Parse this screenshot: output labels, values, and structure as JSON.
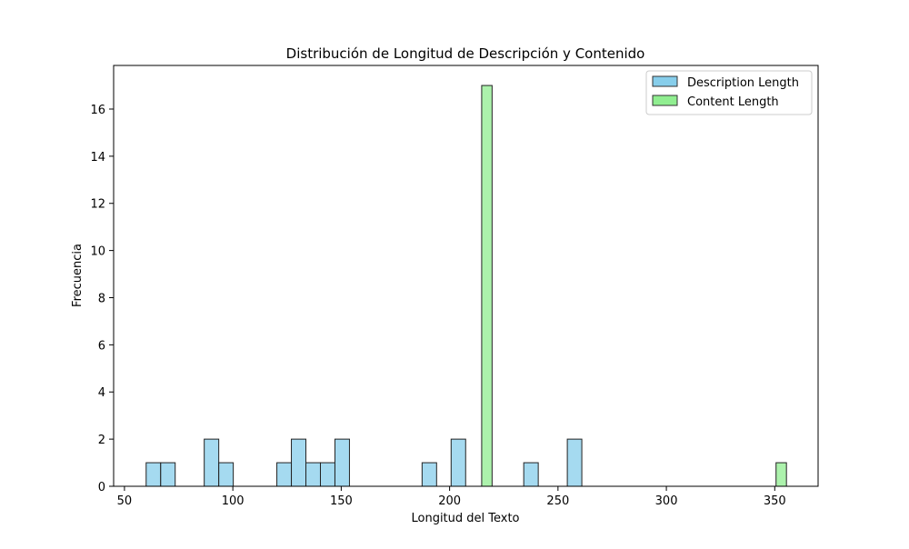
{
  "chart_data": {
    "type": "bar",
    "title": "Distribución de Longitud de Descripción y Contenido",
    "xlabel": "Longitud del Texto",
    "ylabel": "Frecuencia",
    "xlim": [
      45,
      370
    ],
    "ylim": [
      0,
      17.85
    ],
    "xticks": [
      50,
      100,
      150,
      200,
      250,
      300,
      350
    ],
    "yticks": [
      0,
      2,
      4,
      6,
      8,
      10,
      12,
      14,
      16
    ],
    "grid": false,
    "legend_position": "top-right",
    "series": [
      {
        "name": "Description Length",
        "color": "#87CEEB",
        "bins": [
          {
            "x0": 60,
            "x1": 66.7,
            "count": 1
          },
          {
            "x0": 66.7,
            "x1": 73.4,
            "count": 1
          },
          {
            "x0": 86.8,
            "x1": 93.5,
            "count": 2
          },
          {
            "x0": 93.5,
            "x1": 100.2,
            "count": 1
          },
          {
            "x0": 120.3,
            "x1": 127.0,
            "count": 1
          },
          {
            "x0": 127.0,
            "x1": 133.7,
            "count": 2
          },
          {
            "x0": 133.7,
            "x1": 140.4,
            "count": 1
          },
          {
            "x0": 140.4,
            "x1": 147.1,
            "count": 1
          },
          {
            "x0": 147.1,
            "x1": 153.8,
            "count": 2
          },
          {
            "x0": 187.3,
            "x1": 194.0,
            "count": 1
          },
          {
            "x0": 200.7,
            "x1": 207.4,
            "count": 2
          },
          {
            "x0": 234.2,
            "x1": 240.9,
            "count": 1
          },
          {
            "x0": 254.3,
            "x1": 261.0,
            "count": 2
          }
        ]
      },
      {
        "name": "Content Length",
        "color": "#90EE90",
        "bins": [
          {
            "x0": 214.8,
            "x1": 219.6,
            "count": 17
          },
          {
            "x0": 350.6,
            "x1": 355.4,
            "count": 1
          }
        ]
      }
    ]
  }
}
